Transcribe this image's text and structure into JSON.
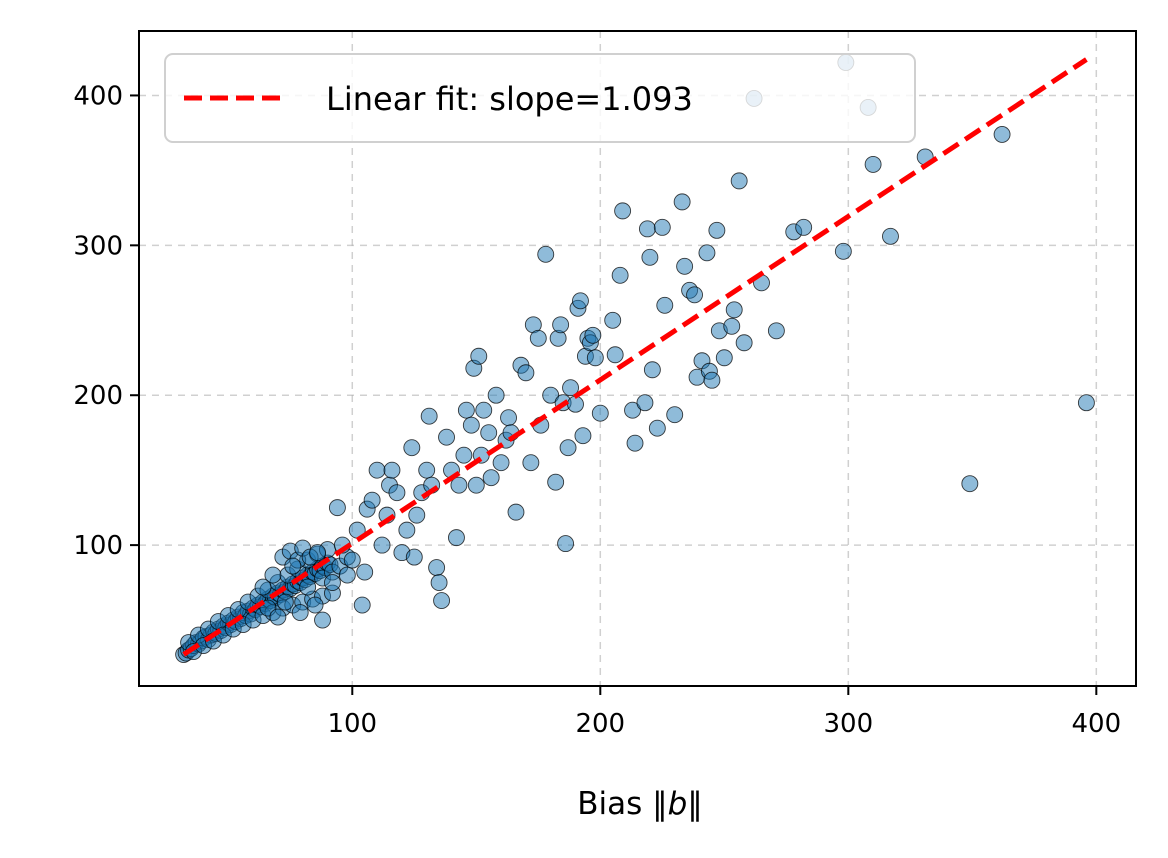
{
  "chart_data": {
    "type": "scatter",
    "title": "",
    "xlabel_prefix": "Bias ",
    "xlabel_symbol": "b",
    "ylabel": "",
    "xlim": [
      14,
      416
    ],
    "ylim": [
      6,
      443
    ],
    "xticks": [
      100,
      200,
      300,
      400
    ],
    "yticks": [
      100,
      200,
      300,
      400
    ],
    "grid": true,
    "legend_position": "top-left",
    "point_color": "#1f77b4",
    "fit_color": "#ff0000",
    "fit": {
      "label": "Linear fit: slope=1.093",
      "slope": 1.093,
      "x": [
        32,
        396
      ],
      "y": [
        27,
        424
      ]
    },
    "points": [
      [
        32,
        27
      ],
      [
        33,
        28
      ],
      [
        34,
        30
      ],
      [
        35,
        31
      ],
      [
        36,
        33
      ],
      [
        37,
        35
      ],
      [
        38,
        34
      ],
      [
        39,
        36
      ],
      [
        40,
        38
      ],
      [
        41,
        39
      ],
      [
        42,
        37
      ],
      [
        43,
        40
      ],
      [
        44,
        42
      ],
      [
        45,
        41
      ],
      [
        46,
        44
      ],
      [
        47,
        43
      ],
      [
        48,
        46
      ],
      [
        49,
        45
      ],
      [
        50,
        48
      ],
      [
        51,
        47
      ],
      [
        52,
        50
      ],
      [
        53,
        49
      ],
      [
        54,
        52
      ],
      [
        55,
        51
      ],
      [
        56,
        55
      ],
      [
        57,
        53
      ],
      [
        58,
        56
      ],
      [
        59,
        54
      ],
      [
        60,
        58
      ],
      [
        61,
        57
      ],
      [
        62,
        60
      ],
      [
        63,
        59
      ],
      [
        64,
        62
      ],
      [
        65,
        61
      ],
      [
        66,
        64
      ],
      [
        67,
        63
      ],
      [
        68,
        66
      ],
      [
        69,
        65
      ],
      [
        70,
        68
      ],
      [
        71,
        67
      ],
      [
        72,
        70
      ],
      [
        73,
        69
      ],
      [
        74,
        72
      ],
      [
        75,
        71
      ],
      [
        76,
        74
      ],
      [
        77,
        73
      ],
      [
        78,
        76
      ],
      [
        79,
        75
      ],
      [
        80,
        78
      ],
      [
        81,
        77
      ],
      [
        82,
        80
      ],
      [
        83,
        79
      ],
      [
        84,
        82
      ],
      [
        85,
        81
      ],
      [
        86,
        84
      ],
      [
        87,
        83
      ],
      [
        88,
        86
      ],
      [
        89,
        85
      ],
      [
        90,
        88
      ],
      [
        91,
        87
      ],
      [
        34,
        35
      ],
      [
        36,
        29
      ],
      [
        38,
        40
      ],
      [
        40,
        33
      ],
      [
        42,
        44
      ],
      [
        44,
        36
      ],
      [
        46,
        49
      ],
      [
        48,
        40
      ],
      [
        50,
        53
      ],
      [
        52,
        44
      ],
      [
        54,
        57
      ],
      [
        56,
        47
      ],
      [
        58,
        62
      ],
      [
        60,
        50
      ],
      [
        62,
        66
      ],
      [
        64,
        53
      ],
      [
        66,
        70
      ],
      [
        68,
        55
      ],
      [
        70,
        75
      ],
      [
        72,
        58
      ],
      [
        74,
        80
      ],
      [
        76,
        60
      ],
      [
        78,
        84
      ],
      [
        80,
        62
      ],
      [
        82,
        90
      ],
      [
        84,
        64
      ],
      [
        86,
        94
      ],
      [
        88,
        66
      ],
      [
        90,
        97
      ],
      [
        92,
        68
      ],
      [
        72,
        92
      ],
      [
        75,
        96
      ],
      [
        78,
        90
      ],
      [
        80,
        98
      ],
      [
        83,
        92
      ],
      [
        86,
        95
      ],
      [
        88,
        78
      ],
      [
        92,
        82
      ],
      [
        95,
        86
      ],
      [
        98,
        92
      ],
      [
        64,
        72
      ],
      [
        66,
        58
      ],
      [
        68,
        80
      ],
      [
        70,
        52
      ],
      [
        73,
        62
      ],
      [
        76,
        86
      ],
      [
        79,
        55
      ],
      [
        82,
        72
      ],
      [
        85,
        60
      ],
      [
        88,
        50
      ],
      [
        92,
        75
      ],
      [
        94,
        125
      ],
      [
        96,
        100
      ],
      [
        98,
        80
      ],
      [
        100,
        90
      ],
      [
        102,
        110
      ],
      [
        104,
        60
      ],
      [
        105,
        82
      ],
      [
        106,
        124
      ],
      [
        108,
        130
      ],
      [
        110,
        150
      ],
      [
        112,
        100
      ],
      [
        114,
        120
      ],
      [
        115,
        140
      ],
      [
        116,
        150
      ],
      [
        118,
        135
      ],
      [
        120,
        95
      ],
      [
        122,
        110
      ],
      [
        124,
        165
      ],
      [
        125,
        92
      ],
      [
        126,
        120
      ],
      [
        128,
        135
      ],
      [
        130,
        150
      ],
      [
        131,
        186
      ],
      [
        132,
        140
      ],
      [
        134,
        85
      ],
      [
        135,
        75
      ],
      [
        136,
        63
      ],
      [
        138,
        172
      ],
      [
        140,
        150
      ],
      [
        142,
        105
      ],
      [
        143,
        140
      ],
      [
        145,
        160
      ],
      [
        146,
        190
      ],
      [
        148,
        180
      ],
      [
        149,
        218
      ],
      [
        150,
        140
      ],
      [
        151,
        226
      ],
      [
        152,
        160
      ],
      [
        153,
        190
      ],
      [
        155,
        175
      ],
      [
        156,
        145
      ],
      [
        158,
        200
      ],
      [
        160,
        155
      ],
      [
        162,
        170
      ],
      [
        163,
        185
      ],
      [
        164,
        175
      ],
      [
        166,
        122
      ],
      [
        168,
        220
      ],
      [
        170,
        215
      ],
      [
        172,
        155
      ],
      [
        173,
        247
      ],
      [
        175,
        238
      ],
      [
        176,
        180
      ],
      [
        178,
        294
      ],
      [
        180,
        200
      ],
      [
        182,
        142
      ],
      [
        183,
        238
      ],
      [
        184,
        247
      ],
      [
        185,
        195
      ],
      [
        186,
        101
      ],
      [
        187,
        165
      ],
      [
        188,
        205
      ],
      [
        190,
        194
      ],
      [
        191,
        258
      ],
      [
        192,
        263
      ],
      [
        193,
        173
      ],
      [
        194,
        226
      ],
      [
        195,
        238
      ],
      [
        196,
        235
      ],
      [
        197,
        240
      ],
      [
        198,
        225
      ],
      [
        200,
        188
      ],
      [
        205,
        250
      ],
      [
        206,
        227
      ],
      [
        208,
        280
      ],
      [
        209,
        323
      ],
      [
        213,
        190
      ],
      [
        214,
        168
      ],
      [
        218,
        195
      ],
      [
        219,
        311
      ],
      [
        220,
        292
      ],
      [
        221,
        217
      ],
      [
        223,
        178
      ],
      [
        225,
        312
      ],
      [
        226,
        260
      ],
      [
        230,
        187
      ],
      [
        233,
        329
      ],
      [
        234,
        286
      ],
      [
        236,
        270
      ],
      [
        238,
        267
      ],
      [
        239,
        212
      ],
      [
        241,
        223
      ],
      [
        243,
        295
      ],
      [
        244,
        216
      ],
      [
        245,
        210
      ],
      [
        247,
        310
      ],
      [
        248,
        243
      ],
      [
        250,
        225
      ],
      [
        253,
        246
      ],
      [
        254,
        257
      ],
      [
        256,
        343
      ],
      [
        258,
        235
      ],
      [
        262,
        398
      ],
      [
        265,
        275
      ],
      [
        271,
        243
      ],
      [
        278,
        309
      ],
      [
        282,
        312
      ],
      [
        298,
        296
      ],
      [
        299,
        422
      ],
      [
        308,
        392
      ],
      [
        310,
        354
      ],
      [
        317,
        306
      ],
      [
        331,
        359
      ],
      [
        349,
        141
      ],
      [
        362,
        374
      ],
      [
        396,
        195
      ]
    ]
  }
}
